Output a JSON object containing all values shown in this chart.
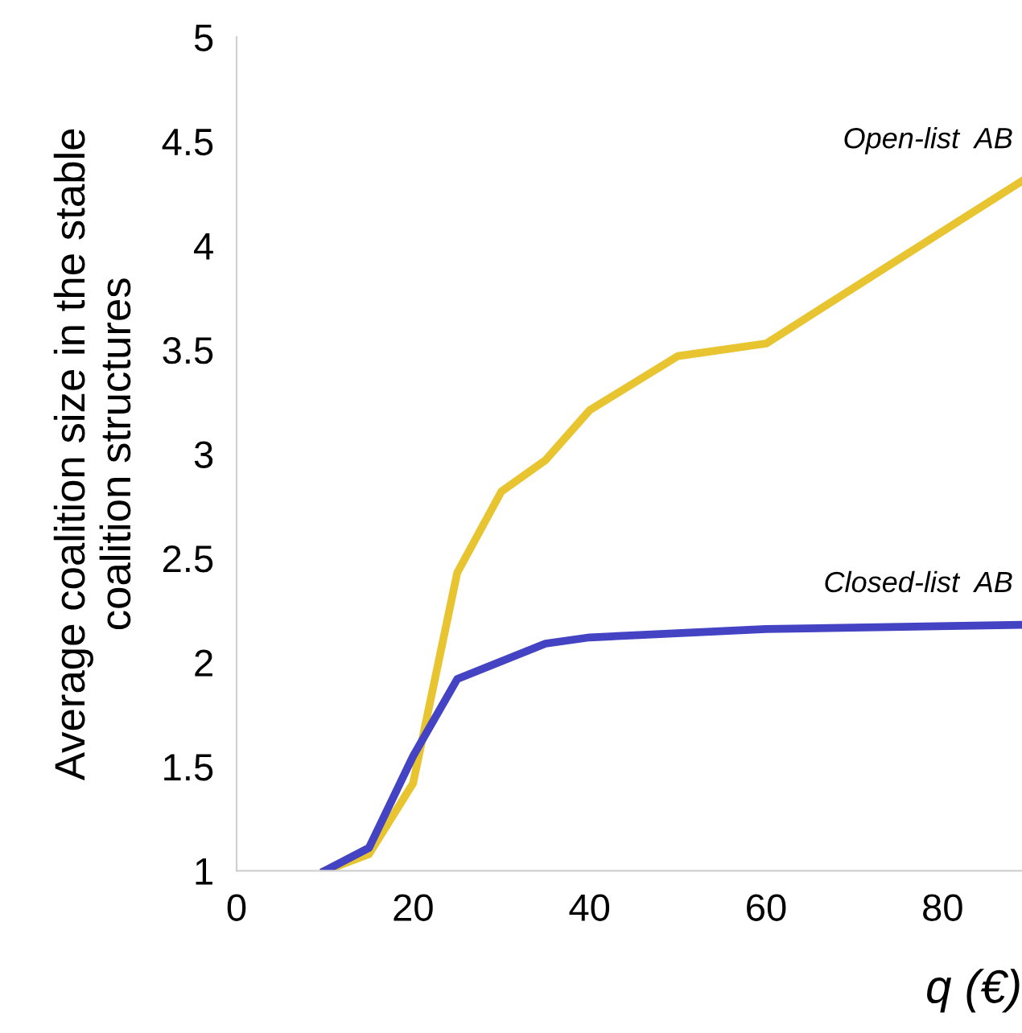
{
  "chart_data": {
    "type": "line",
    "xlabel": "q (€)",
    "ylabel": "Average coalition size in the stable\ncoalition structures",
    "xlim": [
      0,
      89
    ],
    "xticks": [
      0,
      20,
      40,
      60,
      80
    ],
    "ylim": [
      1,
      5
    ],
    "yticks": [
      1,
      1.5,
      2,
      2.5,
      3,
      3.5,
      4,
      4.5,
      5
    ],
    "grid": false,
    "legend": false,
    "series": [
      {
        "name": "Open-list  AB",
        "color": "#e8c530",
        "x": [
          10,
          15,
          20,
          25,
          30,
          35,
          40,
          50,
          60,
          89
        ],
        "values": [
          1,
          1.08,
          1.42,
          2.43,
          2.82,
          2.97,
          3.21,
          3.47,
          3.53,
          4.31
        ]
      },
      {
        "name": "Closed-list  AB",
        "color": "#4343c4",
        "x": [
          10,
          15,
          20,
          25,
          35,
          40,
          60,
          89
        ],
        "values": [
          1,
          1.11,
          1.55,
          1.92,
          2.09,
          2.12,
          2.16,
          2.18
        ]
      }
    ]
  }
}
